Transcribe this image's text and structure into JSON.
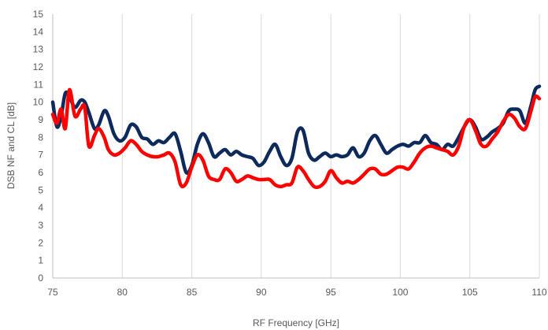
{
  "chart_data": {
    "type": "line",
    "title": "",
    "xlabel": "RF Frequency [GHz]",
    "ylabel": "DSB NF and CL [dB]",
    "xlim": [
      75,
      110
    ],
    "ylim": [
      0,
      15
    ],
    "x_ticks": [
      75,
      80,
      85,
      90,
      95,
      100,
      105,
      110
    ],
    "y_ticks": [
      0,
      1,
      2,
      3,
      4,
      5,
      6,
      7,
      8,
      9,
      10,
      11,
      12,
      13,
      14,
      15
    ],
    "grid": "vertical",
    "legend": "none",
    "series": [
      {
        "color": "#0d2a5c",
        "x": [
          75,
          75.3,
          75.6,
          75.9,
          76.2,
          76.6,
          77.0,
          77.3,
          77.6,
          78.0,
          78.3,
          78.7,
          79.0,
          79.4,
          79.8,
          80.2,
          80.6,
          81.0,
          81.4,
          81.8,
          82.2,
          82.6,
          83.0,
          83.4,
          83.8,
          84.2,
          84.6,
          85.0,
          85.4,
          85.8,
          86.2,
          86.6,
          87.0,
          87.4,
          87.8,
          88.2,
          88.6,
          89.0,
          89.4,
          89.8,
          90.2,
          90.6,
          91.0,
          91.4,
          91.8,
          92.2,
          92.6,
          93.0,
          93.4,
          93.8,
          94.2,
          94.6,
          95.0,
          95.4,
          95.8,
          96.2,
          96.6,
          97.0,
          97.4,
          97.8,
          98.2,
          98.6,
          99.0,
          99.4,
          99.8,
          100.2,
          100.6,
          101.0,
          101.4,
          101.8,
          102.2,
          102.6,
          103.0,
          103.4,
          103.8,
          104.2,
          104.6,
          105.0,
          105.4,
          105.8,
          106.2,
          106.6,
          107.0,
          107.4,
          107.8,
          108.2,
          108.6,
          109.0,
          109.4,
          109.7,
          110
        ],
        "values": [
          10.0,
          8.6,
          9.2,
          10.5,
          10.3,
          9.7,
          10.1,
          10.0,
          9.4,
          8.5,
          8.7,
          9.5,
          9.2,
          8.2,
          7.8,
          8.0,
          8.7,
          8.6,
          8.0,
          7.9,
          7.6,
          7.8,
          7.7,
          8.0,
          8.2,
          7.2,
          6.0,
          6.4,
          7.6,
          8.2,
          7.7,
          6.9,
          7.1,
          7.3,
          7.0,
          7.2,
          7.0,
          6.9,
          6.8,
          6.4,
          6.6,
          7.2,
          7.6,
          6.9,
          6.4,
          6.8,
          8.3,
          8.4,
          7.1,
          6.7,
          6.9,
          7.1,
          6.9,
          7.0,
          6.9,
          7.0,
          7.4,
          6.9,
          7.1,
          7.8,
          8.1,
          7.6,
          7.1,
          7.3,
          7.5,
          7.6,
          7.5,
          7.7,
          7.7,
          8.1,
          7.7,
          7.6,
          7.3,
          7.6,
          7.5,
          8.0,
          8.6,
          9.0,
          8.6,
          7.9,
          8.0,
          8.3,
          8.5,
          8.8,
          9.5,
          9.6,
          9.5,
          8.8,
          9.8,
          10.7,
          10.9
        ]
      },
      {
        "color": "#ff0000",
        "x": [
          75,
          75.3,
          75.6,
          75.9,
          76.2,
          76.6,
          77.0,
          77.3,
          77.6,
          78.0,
          78.3,
          78.7,
          79.0,
          79.4,
          79.8,
          80.2,
          80.6,
          81.0,
          81.4,
          81.8,
          82.2,
          82.6,
          83.0,
          83.4,
          83.8,
          84.2,
          84.6,
          85.0,
          85.4,
          85.8,
          86.2,
          86.6,
          87.0,
          87.4,
          87.8,
          88.2,
          88.6,
          89.0,
          89.4,
          89.8,
          90.2,
          90.6,
          91.0,
          91.4,
          91.8,
          92.2,
          92.6,
          93.0,
          93.4,
          93.8,
          94.2,
          94.6,
          95.0,
          95.4,
          95.8,
          96.2,
          96.6,
          97.0,
          97.4,
          97.8,
          98.2,
          98.6,
          99.0,
          99.4,
          99.8,
          100.2,
          100.6,
          101.0,
          101.4,
          101.8,
          102.2,
          102.6,
          103.0,
          103.4,
          103.8,
          104.2,
          104.6,
          105.0,
          105.4,
          105.8,
          106.2,
          106.6,
          107.0,
          107.4,
          107.8,
          108.2,
          108.6,
          109.0,
          109.4,
          109.7,
          110
        ],
        "values": [
          9.3,
          8.8,
          9.6,
          8.5,
          10.7,
          9.2,
          9.6,
          9.7,
          7.5,
          8.1,
          8.5,
          8.0,
          7.3,
          7.0,
          7.1,
          7.4,
          7.8,
          7.6,
          7.2,
          7.0,
          6.9,
          6.9,
          7.0,
          7.1,
          6.6,
          5.3,
          5.4,
          6.3,
          7.0,
          6.7,
          5.8,
          5.6,
          5.6,
          6.2,
          6.0,
          5.5,
          5.6,
          5.8,
          5.7,
          5.6,
          5.6,
          5.6,
          5.3,
          5.2,
          5.3,
          5.4,
          6.3,
          6.1,
          5.6,
          5.2,
          5.2,
          5.5,
          6.1,
          5.7,
          5.4,
          5.5,
          5.4,
          5.6,
          5.9,
          6.2,
          6.2,
          5.9,
          5.9,
          6.1,
          6.3,
          6.3,
          6.2,
          6.6,
          7.1,
          7.4,
          7.5,
          7.4,
          7.3,
          7.2,
          7.0,
          7.5,
          8.6,
          9.0,
          8.4,
          7.6,
          7.5,
          7.9,
          8.3,
          8.9,
          9.3,
          9.1,
          8.6,
          8.5,
          9.5,
          10.3,
          10.2
        ]
      }
    ]
  }
}
